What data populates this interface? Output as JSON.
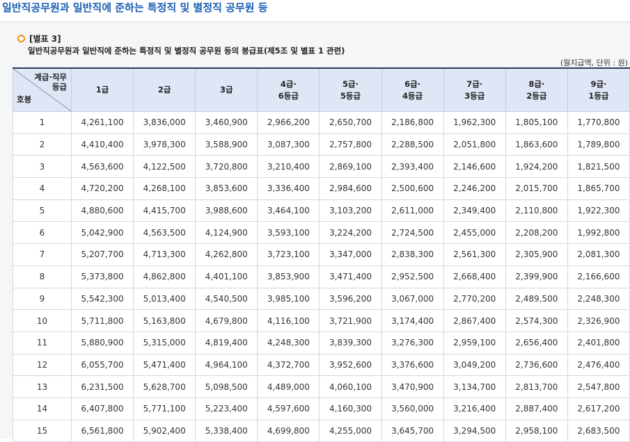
{
  "page_title": "일반직공무원과 일반직에 준하는 특정직 및 별정직 공무원 등",
  "annex_label": "[별표 3]",
  "subtitle": "일반직공무원과 일반직에 준하는 특정직 및 별정직 공무원 등의 봉급표(제5조 및 별표 1 관련)",
  "unit_note": "(월지급액, 단위 : 원)",
  "table": {
    "corner_top_line1": "계급·직무",
    "corner_top_line2": "등급",
    "corner_bottom": "호봉",
    "grades": [
      "1급",
      "2급",
      "3급",
      "4급·\n6등급",
      "5급·\n5등급",
      "6급·\n4등급",
      "7급·\n3등급",
      "8급·\n2등급",
      "9급·\n1등급"
    ],
    "rows": [
      {
        "step": "1",
        "values": [
          "4,261,100",
          "3,836,000",
          "3,460,900",
          "2,966,200",
          "2,650,700",
          "2,186,800",
          "1,962,300",
          "1,805,100",
          "1,770,800"
        ]
      },
      {
        "step": "2",
        "values": [
          "4,410,400",
          "3,978,300",
          "3,588,900",
          "3,087,300",
          "2,757,800",
          "2,288,500",
          "2,051,800",
          "1,863,600",
          "1,789,800"
        ]
      },
      {
        "step": "3",
        "values": [
          "4,563,600",
          "4,122,500",
          "3,720,800",
          "3,210,400",
          "2,869,100",
          "2,393,400",
          "2,146,600",
          "1,924,200",
          "1,821,500"
        ]
      },
      {
        "step": "4",
        "values": [
          "4,720,200",
          "4,268,100",
          "3,853,600",
          "3,336,400",
          "2,984,600",
          "2,500,600",
          "2,246,200",
          "2,015,700",
          "1,865,700"
        ]
      },
      {
        "step": "5",
        "values": [
          "4,880,600",
          "4,415,700",
          "3,988,600",
          "3,464,100",
          "3,103,200",
          "2,611,000",
          "2,349,400",
          "2,110,800",
          "1,922,300"
        ]
      },
      {
        "step": "6",
        "values": [
          "5,042,900",
          "4,563,500",
          "4,124,900",
          "3,593,100",
          "3,224,200",
          "2,724,500",
          "2,455,000",
          "2,208,200",
          "1,992,800"
        ]
      },
      {
        "step": "7",
        "values": [
          "5,207,700",
          "4,713,300",
          "4,262,800",
          "3,723,100",
          "3,347,000",
          "2,838,300",
          "2,561,300",
          "2,305,900",
          "2,081,300"
        ]
      },
      {
        "step": "8",
        "values": [
          "5,373,800",
          "4,862,800",
          "4,401,100",
          "3,853,900",
          "3,471,400",
          "2,952,500",
          "2,668,400",
          "2,399,900",
          "2,166,600"
        ]
      },
      {
        "step": "9",
        "values": [
          "5,542,300",
          "5,013,400",
          "4,540,500",
          "3,985,100",
          "3,596,200",
          "3,067,000",
          "2,770,200",
          "2,489,500",
          "2,248,300"
        ]
      },
      {
        "step": "10",
        "values": [
          "5,711,800",
          "5,163,800",
          "4,679,800",
          "4,116,100",
          "3,721,900",
          "3,174,400",
          "2,867,400",
          "2,574,300",
          "2,326,900"
        ]
      },
      {
        "step": "11",
        "values": [
          "5,880,900",
          "5,315,000",
          "4,819,400",
          "4,248,300",
          "3,839,300",
          "3,276,300",
          "2,959,100",
          "2,656,400",
          "2,401,800"
        ]
      },
      {
        "step": "12",
        "values": [
          "6,055,700",
          "5,471,400",
          "4,964,100",
          "4,372,700",
          "3,952,600",
          "3,376,600",
          "3,049,200",
          "2,736,600",
          "2,476,400"
        ]
      },
      {
        "step": "13",
        "values": [
          "6,231,500",
          "5,628,700",
          "5,098,500",
          "4,489,000",
          "4,060,100",
          "3,470,900",
          "3,134,700",
          "2,813,700",
          "2,547,800"
        ]
      },
      {
        "step": "14",
        "values": [
          "6,407,800",
          "5,771,100",
          "5,223,400",
          "4,597,600",
          "4,160,300",
          "3,560,000",
          "3,216,400",
          "2,887,400",
          "2,617,200"
        ]
      },
      {
        "step": "15",
        "values": [
          "6,561,800",
          "5,902,400",
          "5,338,400",
          "4,699,800",
          "4,255,000",
          "3,645,700",
          "3,294,500",
          "2,958,100",
          "2,683,500"
        ]
      }
    ]
  },
  "colors": {
    "title": "#1a5fb4",
    "header_bg": "#dfe7f7",
    "bullet": "#f08c00"
  }
}
